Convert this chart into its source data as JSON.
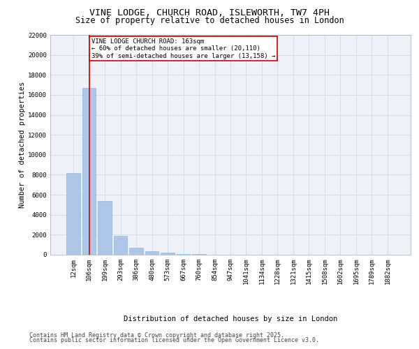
{
  "title_line1": "VINE LODGE, CHURCH ROAD, ISLEWORTH, TW7 4PH",
  "title_line2": "Size of property relative to detached houses in London",
  "xlabel": "Distribution of detached houses by size in London",
  "ylabel": "Number of detached properties",
  "categories": [
    "12sqm",
    "106sqm",
    "199sqm",
    "293sqm",
    "386sqm",
    "480sqm",
    "573sqm",
    "667sqm",
    "760sqm",
    "854sqm",
    "947sqm",
    "1041sqm",
    "1134sqm",
    "1228sqm",
    "1321sqm",
    "1415sqm",
    "1508sqm",
    "1602sqm",
    "1695sqm",
    "1789sqm",
    "1882sqm"
  ],
  "values": [
    8200,
    16700,
    5400,
    1900,
    700,
    350,
    200,
    100,
    50,
    0,
    0,
    0,
    0,
    0,
    0,
    0,
    0,
    0,
    0,
    0,
    0
  ],
  "bar_color": "#aec6e8",
  "bar_edge_color": "#7aafd4",
  "vline_x_index": 1,
  "vline_color": "#cc0000",
  "annotation_text": "VINE LODGE CHURCH ROAD: 163sqm\n← 60% of detached houses are smaller (20,110)\n39% of semi-detached houses are larger (13,158) →",
  "annotation_box_color": "#cc0000",
  "ylim": [
    0,
    22000
  ],
  "yticks": [
    0,
    2000,
    4000,
    6000,
    8000,
    10000,
    12000,
    14000,
    16000,
    18000,
    20000,
    22000
  ],
  "grid_color": "#d0d8e8",
  "background_color": "#eef2f8",
  "footer_line1": "Contains HM Land Registry data © Crown copyright and database right 2025.",
  "footer_line2": "Contains public sector information licensed under the Open Government Licence v3.0.",
  "title_fontsize": 9.5,
  "subtitle_fontsize": 8.5,
  "axis_label_fontsize": 7.5,
  "tick_fontsize": 6.5,
  "annotation_fontsize": 6.5,
  "footer_fontsize": 6.0
}
